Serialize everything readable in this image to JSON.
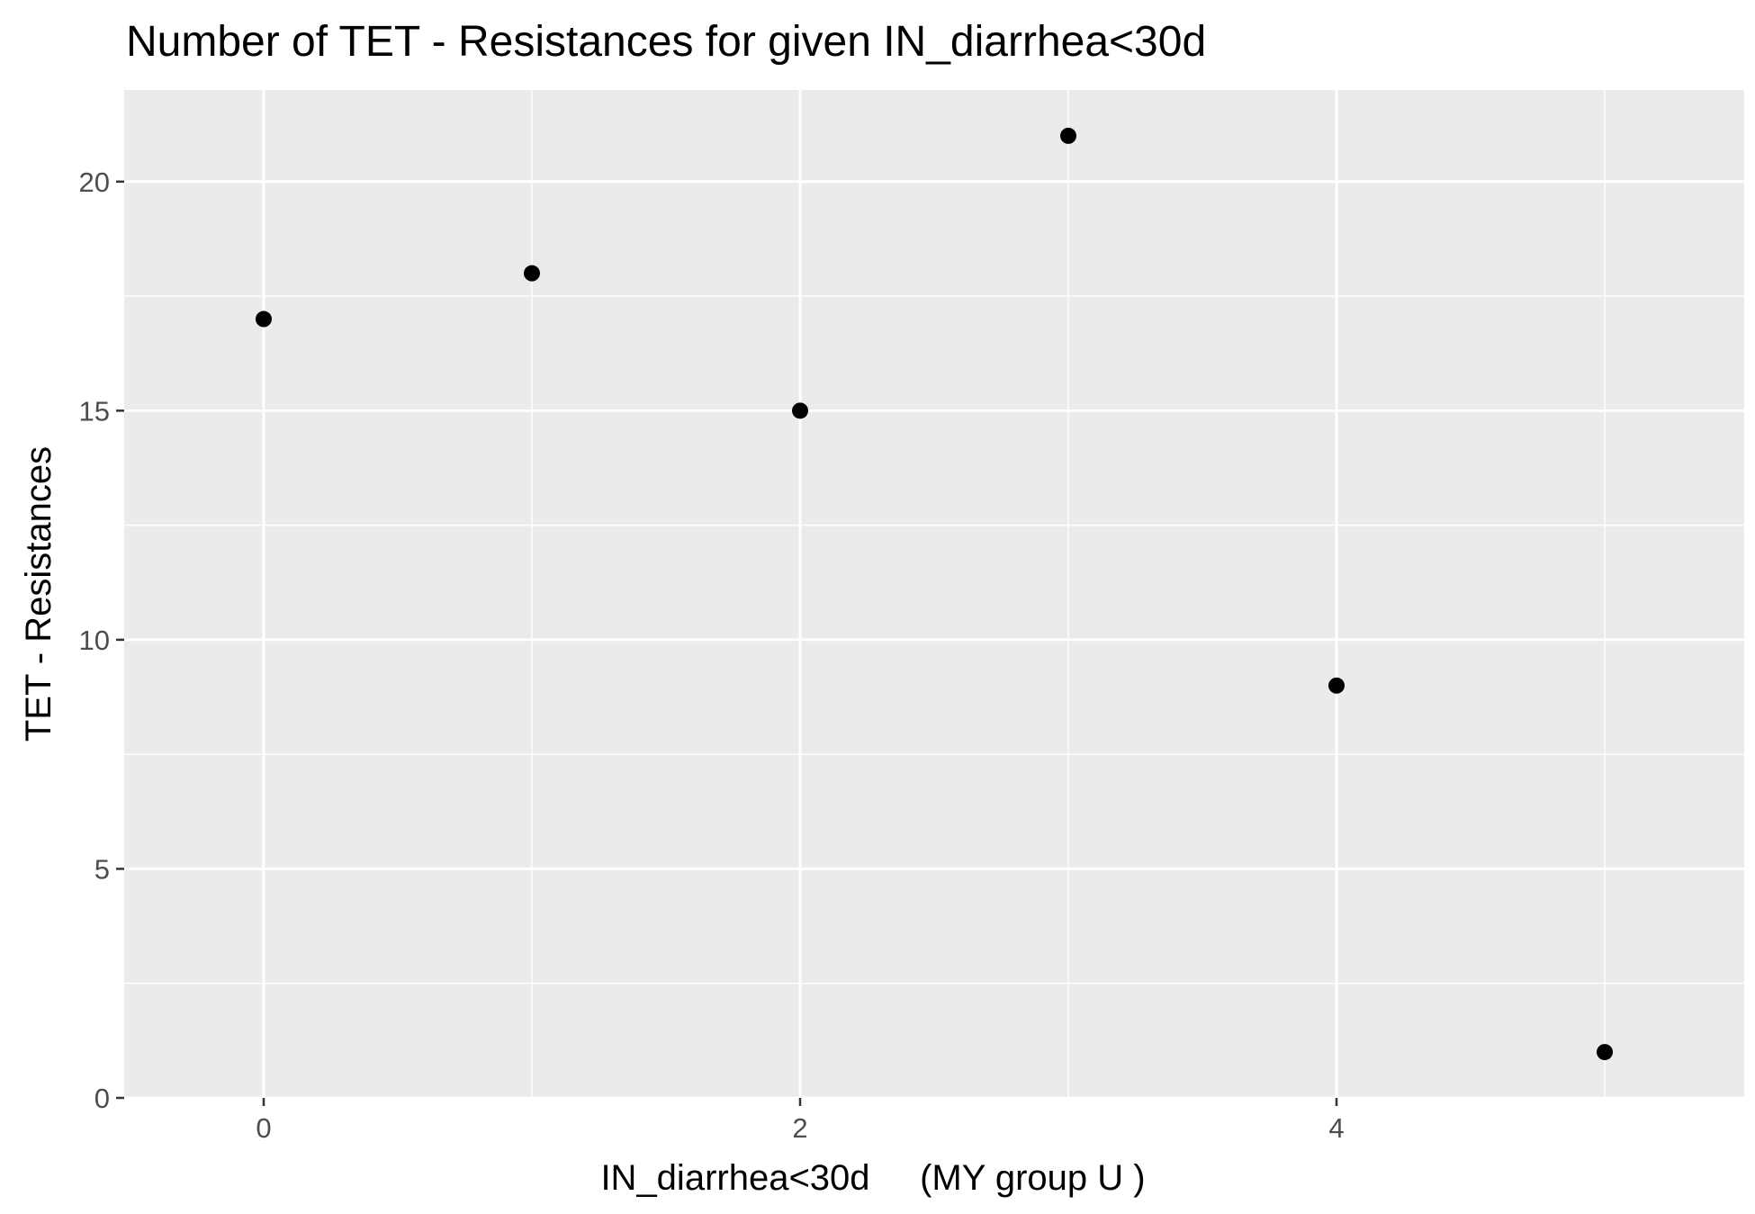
{
  "chart_data": {
    "type": "scatter",
    "title": "Number of TET - Resistances for given IN_diarrhea<30d",
    "xlabel": "IN_diarrhea<30d     (MY group U )",
    "ylabel": "TET - Resistances",
    "x": [
      0,
      1,
      2,
      3,
      4,
      5
    ],
    "y": [
      17,
      18,
      15,
      21,
      9,
      1
    ],
    "xlim": [
      -0.52,
      5.52
    ],
    "ylim": [
      0,
      22
    ],
    "x_ticks": [
      0,
      2,
      4
    ],
    "x_tick_labels": [
      "0",
      "2",
      "4"
    ],
    "y_ticks": [
      0,
      5,
      10,
      15,
      20
    ],
    "y_tick_labels": [
      "0",
      "5",
      "10",
      "15",
      "20"
    ],
    "grid": true,
    "panel_background": "#ebebeb",
    "grid_color": "#ffffff",
    "point_color": "#000000"
  }
}
